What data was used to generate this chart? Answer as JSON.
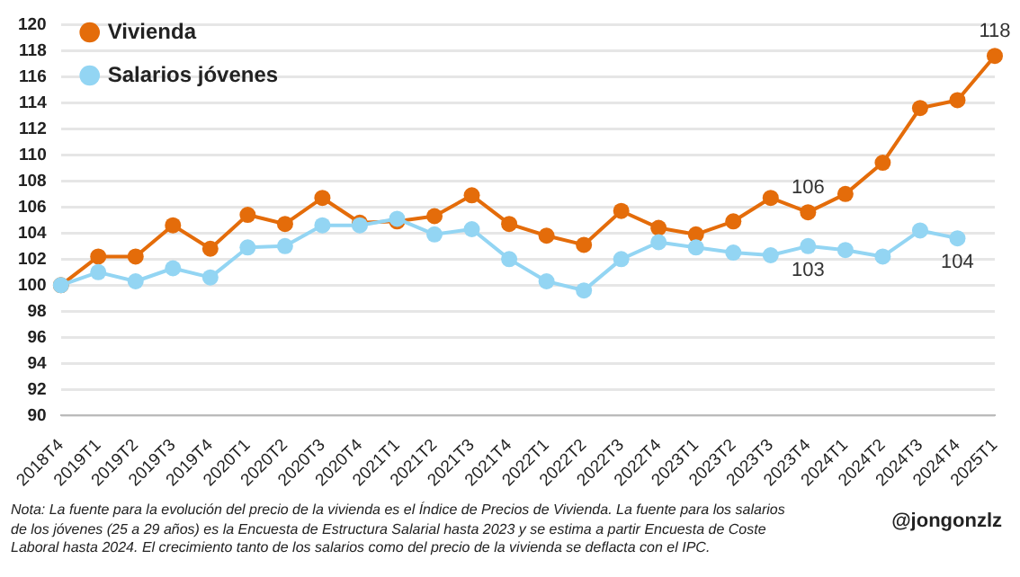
{
  "chart_data": {
    "type": "line",
    "categories": [
      "2018T4",
      "2019T1",
      "2019T2",
      "2019T3",
      "2019T4",
      "2020T1",
      "2020T2",
      "2020T3",
      "2020T4",
      "2021T1",
      "2021T2",
      "2021T3",
      "2021T4",
      "2022T1",
      "2022T2",
      "2022T3",
      "2022T4",
      "2023T1",
      "2023T2",
      "2023T3",
      "2023T4",
      "2024T1",
      "2024T2",
      "2024T3",
      "2024T4",
      "2025T1"
    ],
    "series": [
      {
        "name": "Vivienda",
        "color": "#e46c0a",
        "values": [
          100,
          102.2,
          102.2,
          104.6,
          102.8,
          105.4,
          104.7,
          106.7,
          104.8,
          104.9,
          105.3,
          106.9,
          104.7,
          103.8,
          103.1,
          105.7,
          104.4,
          103.9,
          104.9,
          106.7,
          105.6,
          107.0,
          109.4,
          113.6,
          114.2,
          117.6
        ],
        "value_labels": [
          null,
          null,
          null,
          null,
          null,
          null,
          null,
          null,
          null,
          null,
          null,
          null,
          null,
          null,
          null,
          null,
          null,
          null,
          null,
          null,
          "106",
          null,
          null,
          null,
          null,
          "118"
        ]
      },
      {
        "name": "Salarios jóvenes",
        "color": "#93d5f3",
        "values": [
          100,
          101.0,
          100.3,
          101.3,
          100.6,
          102.9,
          103.0,
          104.6,
          104.6,
          105.1,
          103.9,
          104.3,
          102.0,
          100.3,
          99.6,
          102.0,
          103.3,
          102.9,
          102.5,
          102.3,
          103.0,
          102.7,
          102.2,
          104.2,
          103.6,
          null
        ],
        "value_labels": [
          null,
          null,
          null,
          null,
          null,
          null,
          null,
          null,
          null,
          null,
          null,
          null,
          null,
          null,
          null,
          null,
          null,
          null,
          null,
          null,
          "103",
          null,
          null,
          null,
          "104",
          null
        ]
      }
    ],
    "ylim": [
      90,
      120
    ],
    "yticks": [
      90,
      92,
      94,
      96,
      98,
      100,
      102,
      104,
      106,
      108,
      110,
      112,
      114,
      116,
      118,
      120
    ],
    "grid": "y",
    "legend": "top left",
    "marker": "circle",
    "line_style": "solid",
    "annotations": [
      "Nota: La fuente para la evolución del precio de la vivienda es el Índice de Precios de Vivienda. La fuente para los salarios de los jóvenes (25 a 29 años) es la Encuesta de Estructura Salarial hasta 2023 y se estima a partir Encuesta de Coste Laboral hasta 2024. El crecimiento tanto de los salarios como del precio de la vivienda se deflacta con el IPC.",
      "@jongonzlz"
    ]
  }
}
